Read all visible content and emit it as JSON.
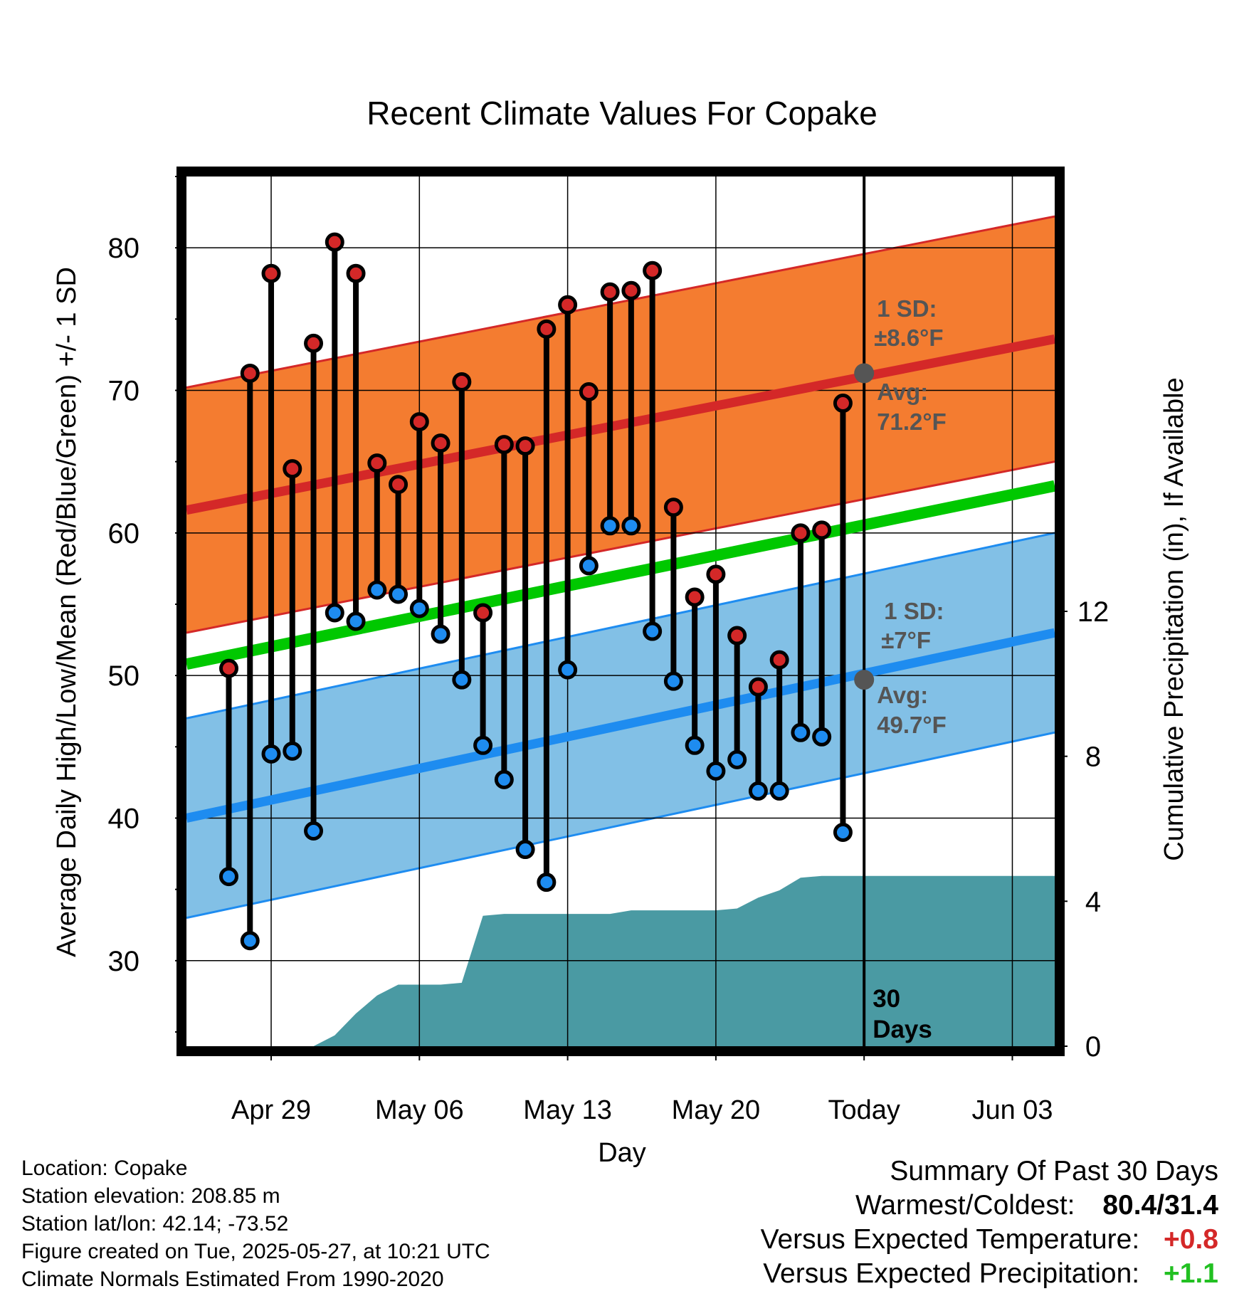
{
  "chart_data": {
    "type": "line",
    "title": "Recent Climate Values For Copake",
    "xlabel": "Day",
    "ylabel": "Average Daily High/Low/Mean (Red/Blue/Green) +/- 1 SD",
    "y2label": "Cumulative Precipitation (in), If Available",
    "ylim": [
      24,
      85
    ],
    "y2lim": [
      0,
      24
    ],
    "yticks": [
      "30",
      "40",
      "50",
      "60",
      "70",
      "80"
    ],
    "y2ticks": [
      "0",
      "4",
      "8",
      "12"
    ],
    "xticks": [
      "Apr 29",
      "May 06",
      "May 13",
      "May 20",
      "Today",
      "Jun 03"
    ],
    "x_range_days": [
      "2025-04-25",
      "2025-06-05"
    ],
    "xtick_dates": [
      "2025-04-29",
      "2025-05-06",
      "2025-05-13",
      "2025-05-20",
      "2025-05-27",
      "2025-06-03"
    ],
    "grid": true,
    "today": "2025-05-27",
    "today_label": "30 Days",
    "daily_highs": {
      "dates": [
        "2025-04-27",
        "2025-04-28",
        "2025-04-29",
        "2025-04-30",
        "2025-05-01",
        "2025-05-02",
        "2025-05-03",
        "2025-05-04",
        "2025-05-05",
        "2025-05-06",
        "2025-05-07",
        "2025-05-08",
        "2025-05-09",
        "2025-05-10",
        "2025-05-11",
        "2025-05-12",
        "2025-05-13",
        "2025-05-14",
        "2025-05-15",
        "2025-05-16",
        "2025-05-17",
        "2025-05-18",
        "2025-05-19",
        "2025-05-20",
        "2025-05-21",
        "2025-05-22",
        "2025-05-23",
        "2025-05-24",
        "2025-05-25",
        "2025-05-26"
      ],
      "values": [
        50.5,
        71.2,
        78.2,
        64.5,
        73.3,
        80.4,
        78.2,
        64.9,
        63.4,
        67.8,
        66.3,
        70.6,
        54.4,
        66.2,
        66.1,
        74.3,
        76.0,
        69.9,
        76.9,
        77.0,
        78.4,
        61.8,
        55.5,
        57.1,
        52.8,
        49.2,
        51.1,
        60.0,
        60.2,
        69.1
      ]
    },
    "daily_lows": {
      "dates": [
        "2025-04-27",
        "2025-04-28",
        "2025-04-29",
        "2025-04-30",
        "2025-05-01",
        "2025-05-02",
        "2025-05-03",
        "2025-05-04",
        "2025-05-05",
        "2025-05-06",
        "2025-05-07",
        "2025-05-08",
        "2025-05-09",
        "2025-05-10",
        "2025-05-11",
        "2025-05-12",
        "2025-05-13",
        "2025-05-14",
        "2025-05-15",
        "2025-05-16",
        "2025-05-17",
        "2025-05-18",
        "2025-05-19",
        "2025-05-20",
        "2025-05-21",
        "2025-05-22",
        "2025-05-23",
        "2025-05-24",
        "2025-05-25",
        "2025-05-26"
      ],
      "values": [
        35.9,
        31.4,
        44.5,
        44.7,
        39.1,
        54.4,
        53.8,
        56.0,
        55.7,
        54.7,
        52.9,
        49.7,
        45.1,
        42.7,
        37.8,
        35.5,
        50.4,
        57.7,
        60.5,
        60.5,
        53.1,
        49.6,
        45.1,
        43.3,
        44.1,
        41.9,
        41.9,
        46.0,
        45.7,
        39.0
      ]
    },
    "normal_high": {
      "dates": [
        "2025-04-25",
        "2025-06-05"
      ],
      "values": [
        61.6,
        73.6
      ],
      "sd_label": "1 SD:",
      "sd_value": "±8.6°F",
      "sd": 8.6,
      "today_avg_label": "Avg:",
      "today_avg": "71.2°F",
      "today_avg_value": 71.2
    },
    "normal_low": {
      "dates": [
        "2025-04-25",
        "2025-06-05"
      ],
      "values": [
        40.0,
        53.0
      ],
      "sd_label": "1 SD:",
      "sd_value": "±7°F",
      "sd": 7.0,
      "today_avg_label": "Avg:",
      "today_avg": "49.7°F",
      "today_avg_value": 49.7
    },
    "normal_mean": {
      "dates": [
        "2025-04-25",
        "2025-06-05"
      ],
      "values": [
        50.8,
        63.3
      ]
    },
    "cumulative_precip": {
      "dates": [
        "2025-04-25",
        "2025-05-01",
        "2025-05-02",
        "2025-05-03",
        "2025-05-04",
        "2025-05-05",
        "2025-05-06",
        "2025-05-07",
        "2025-05-08",
        "2025-05-09",
        "2025-05-10",
        "2025-05-15",
        "2025-05-16",
        "2025-05-20",
        "2025-05-21",
        "2025-05-22",
        "2025-05-23",
        "2025-05-24",
        "2025-05-25",
        "2025-05-26",
        "2025-06-05"
      ],
      "values": [
        0,
        0,
        0.3,
        0.9,
        1.4,
        1.7,
        1.7,
        1.7,
        1.75,
        3.6,
        3.65,
        3.65,
        3.75,
        3.75,
        3.8,
        4.1,
        4.3,
        4.65,
        4.7,
        4.7,
        4.7
      ]
    },
    "colors": {
      "high_band": "#f47c30",
      "high_line": "#d42828",
      "low_band": "#82c0e6",
      "low_line": "#1e8cf0",
      "mean_line": "#00c800",
      "precip": "#4a9aa3",
      "high_dot": "#d42828",
      "low_dot": "#1e8cf0"
    }
  },
  "footer": {
    "location": "Location: Copake",
    "elevation": "Station elevation: 208.85 m",
    "latlon": "Station lat/lon: 42.14; -73.52",
    "created": "Figure created on Tue, 2025-05-27, at 10:21 UTC",
    "normals": "Climate Normals Estimated From 1990-2020"
  },
  "summary": {
    "title": "Summary Of Past 30 Days",
    "warmest_coldest_label": "Warmest/Coldest:",
    "warmest_coldest_value": "80.4/31.4",
    "temp_label": "Versus Expected Temperature:",
    "temp_value": "+0.8",
    "temp_color": "#d42828",
    "precip_label": "Versus Expected Precipitation:",
    "precip_value": "+1.1",
    "precip_color": "#22c022"
  }
}
